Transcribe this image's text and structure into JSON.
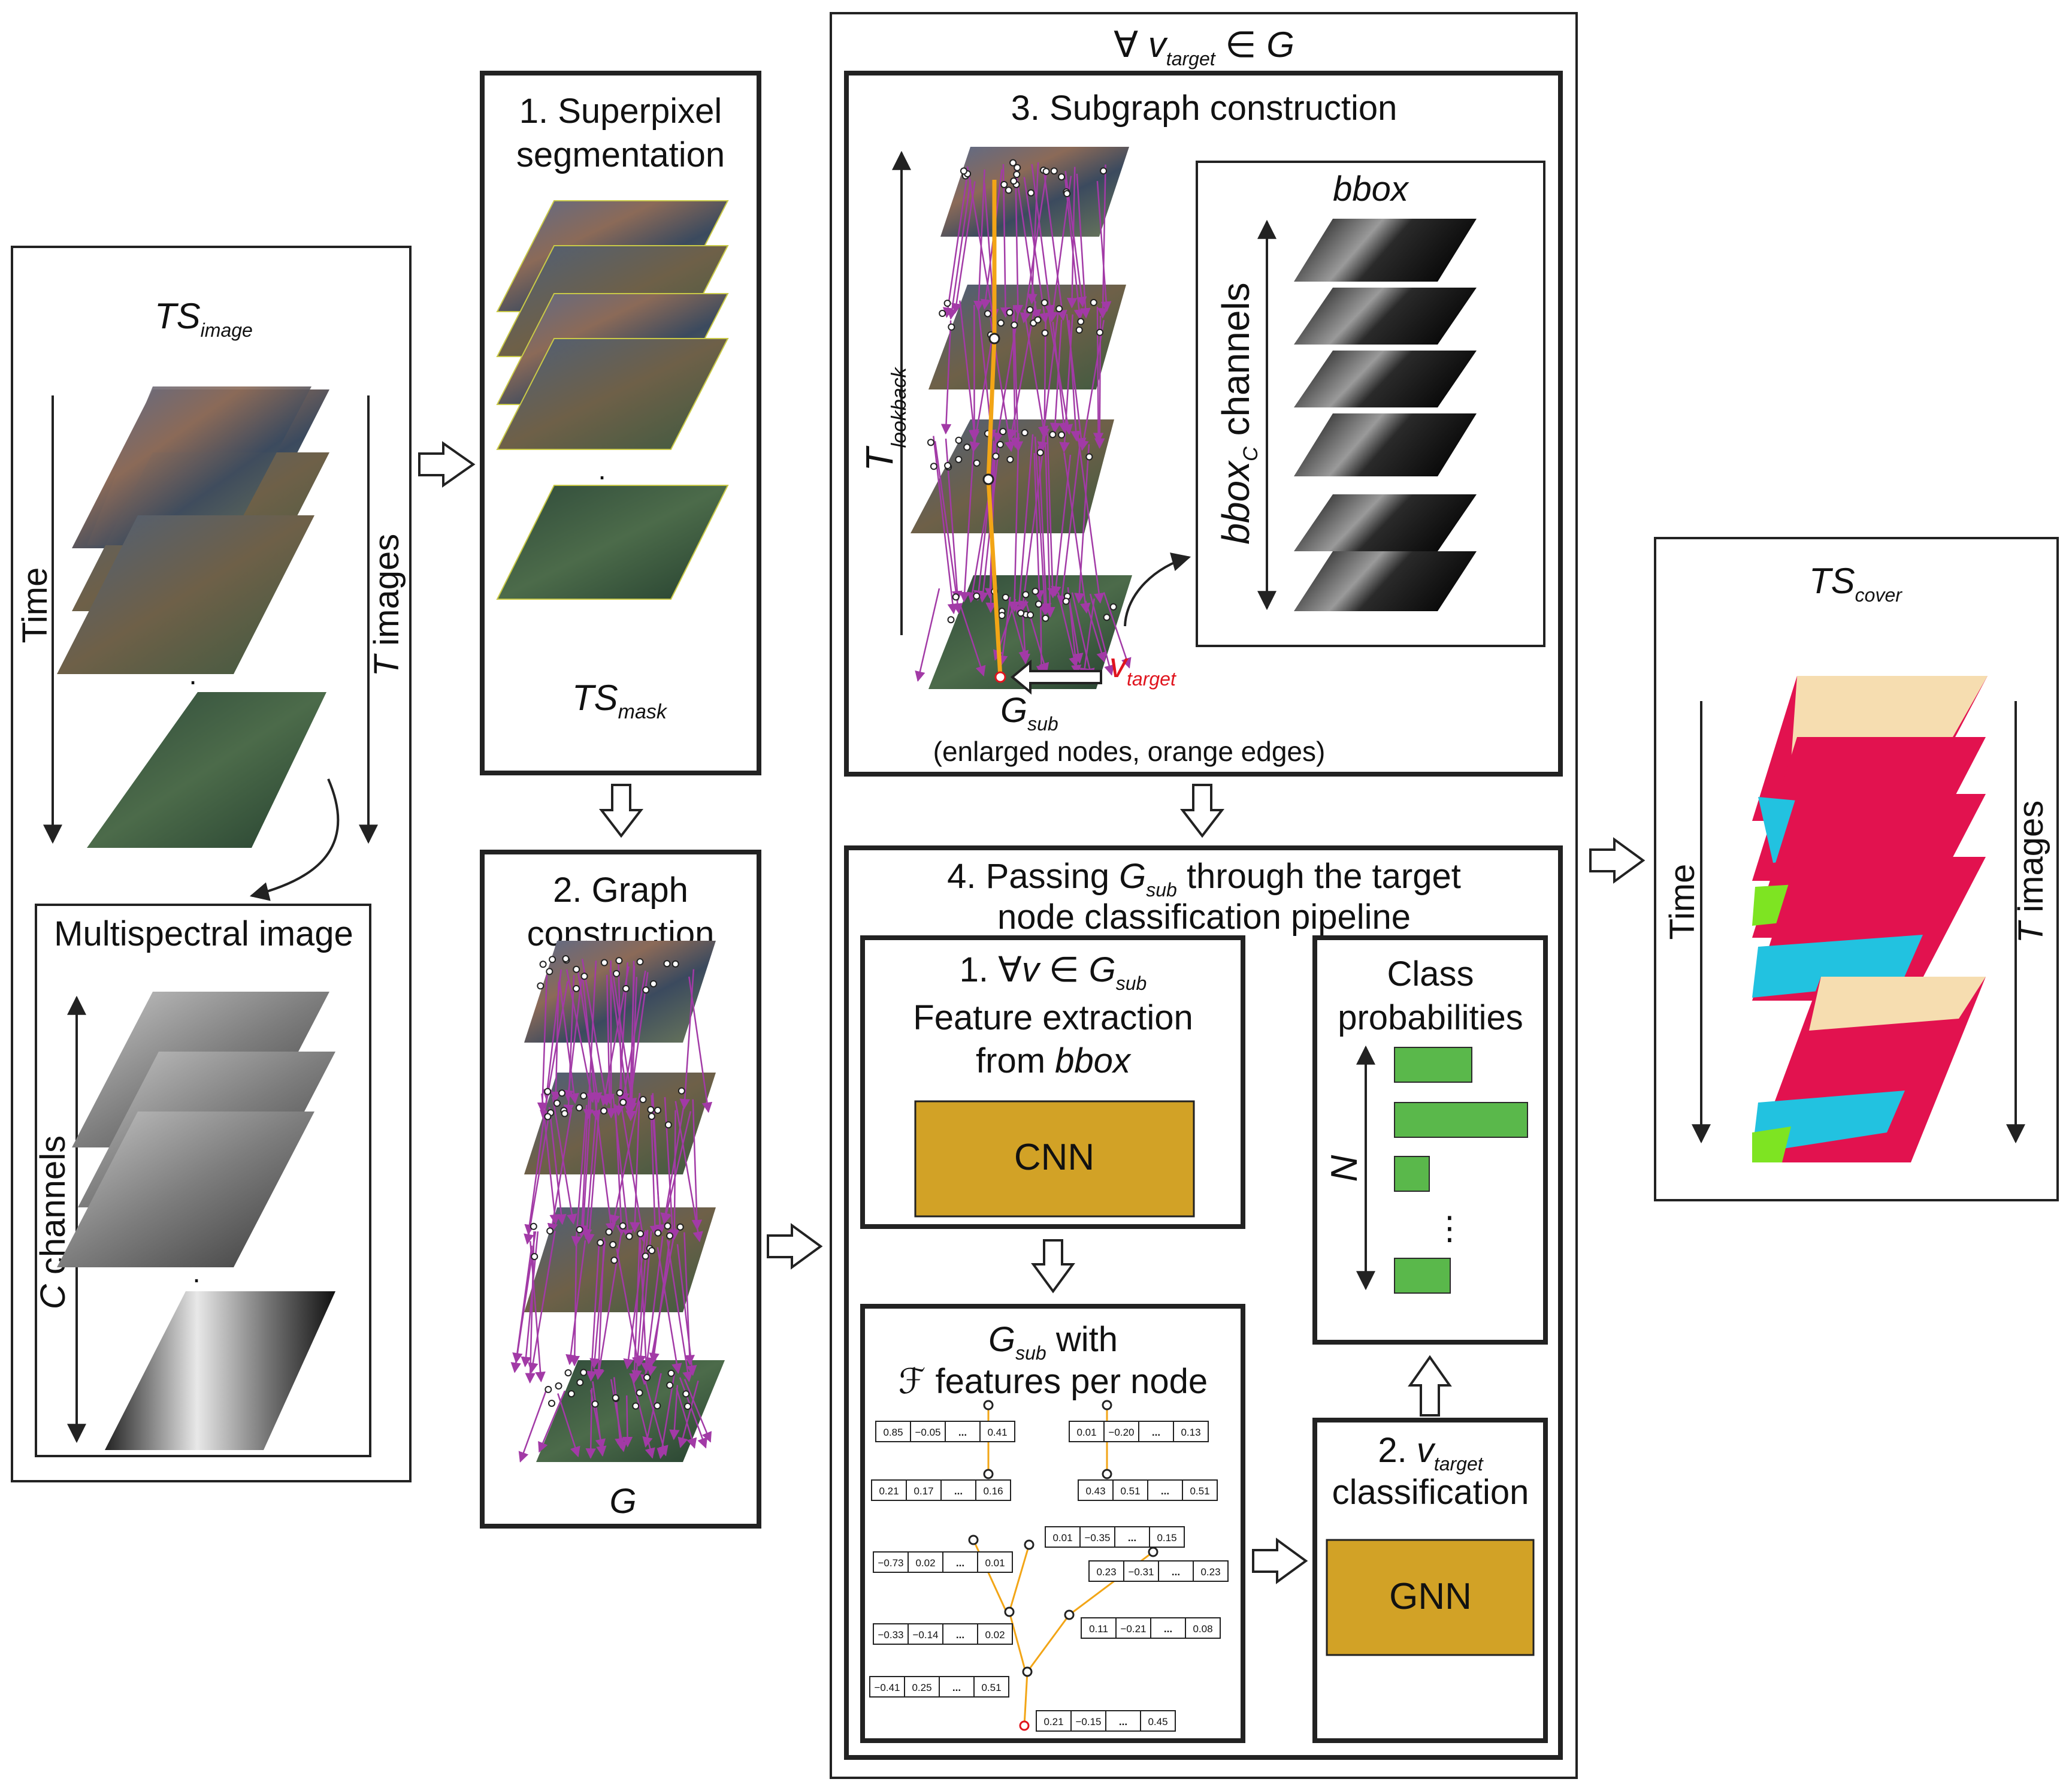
{
  "colors": {
    "frame": "#222222",
    "cnn_box": "#d2a226",
    "gnn_box": "#d2a226",
    "bar_green": "#5ab84b",
    "edge_magenta": "#a23aa6",
    "edge_orange": "#f2a516",
    "v_target_red": "#e0141e",
    "land_cream": "#f6ddb0",
    "land_crimson": "#e2124f",
    "land_cyan": "#22c2e0",
    "land_lime": "#7ee422"
  },
  "panel_ts_image": {
    "title_main": "TS",
    "title_sub": "image",
    "time_label": "Time",
    "t_images_italic": "T",
    "t_images_rest": " images",
    "dot": "."
  },
  "panel_multispectral": {
    "title": "Multispectral image",
    "channels_italic": "C",
    "channels_rest": " channels",
    "dot": "."
  },
  "step1": {
    "title_line1": "1. Superpixel",
    "title_line2": "segmentation",
    "mask_main": "TS",
    "mask_sub": "mask",
    "dot": "."
  },
  "step2": {
    "title_line1": "2. Graph",
    "title_line2": "construction",
    "graph_label": "G"
  },
  "outer_block": {
    "forall": "∀",
    "v": "v",
    "v_sub": "target",
    "in_g": " ∈ G"
  },
  "step3": {
    "title": "3. Subgraph construction",
    "t_main": "T",
    "t_sub": "lookback",
    "bbox_title": "bbox",
    "bbox_axis_main": "bbox",
    "bbox_axis_sub": "C",
    "bbox_axis_rest": " channels",
    "v_main": "v",
    "v_sub": "target",
    "gsub_main": "G",
    "gsub_sub": "sub",
    "gsub_note": "(enlarged nodes, orange edges)"
  },
  "step4": {
    "title_part1": "4. Passing ",
    "title_g": "G",
    "title_sub": "sub",
    "title_part2": " through the target",
    "title_line2": "node classification pipeline",
    "sub1_line1_prefix": "1. ∀",
    "sub1_line1_v": "v",
    "sub1_line1_in": " ∈ ",
    "sub1_line1_g": "G",
    "sub1_line1_sub": "sub",
    "sub1_line2": "Feature extraction",
    "sub1_line3_prefix": "from ",
    "sub1_line3_bbox": "bbox",
    "cnn_label": "CNN",
    "features_g": "G",
    "features_sub": "sub",
    "features_with": " with",
    "features_line2_f": "ℱ",
    "features_line2_rest": " features per node",
    "class_line1": "Class",
    "class_line2": "probabilities",
    "n_label": "N",
    "ellipsis": "⋮",
    "class_values": [
      0.58,
      1.0,
      0.26,
      0.42
    ],
    "sub2_prefix": "2. ",
    "sub2_v": "v",
    "sub2_sub": "target",
    "sub2_line2": "classification",
    "gnn_label": "GNN"
  },
  "feature_rows": [
    [
      "0.85",
      "−0.05",
      "...",
      "0.41"
    ],
    [
      "0.01",
      "−0.20",
      "...",
      "0.13"
    ],
    [
      "0.21",
      "0.17",
      "...",
      "0.16"
    ],
    [
      "0.43",
      "0.51",
      "...",
      "0.51"
    ],
    [
      "0.01",
      "−0.35",
      "...",
      "0.15"
    ],
    [
      "−0.73",
      "0.02",
      "...",
      "0.01"
    ],
    [
      "0.23",
      "−0.31",
      "...",
      "0.23"
    ],
    [
      "0.11",
      "−0.21",
      "...",
      "0.08"
    ],
    [
      "−0.33",
      "−0.14",
      "...",
      "0.02"
    ],
    [
      "−0.41",
      "0.25",
      "...",
      "0.51"
    ],
    [
      "0.21",
      "−0.15",
      "...",
      "0.45"
    ]
  ],
  "panel_ts_cover": {
    "title_main": "TS",
    "title_sub": "cover",
    "time_label": "Time",
    "t_images_italic": "T",
    "t_images_rest": " images"
  }
}
